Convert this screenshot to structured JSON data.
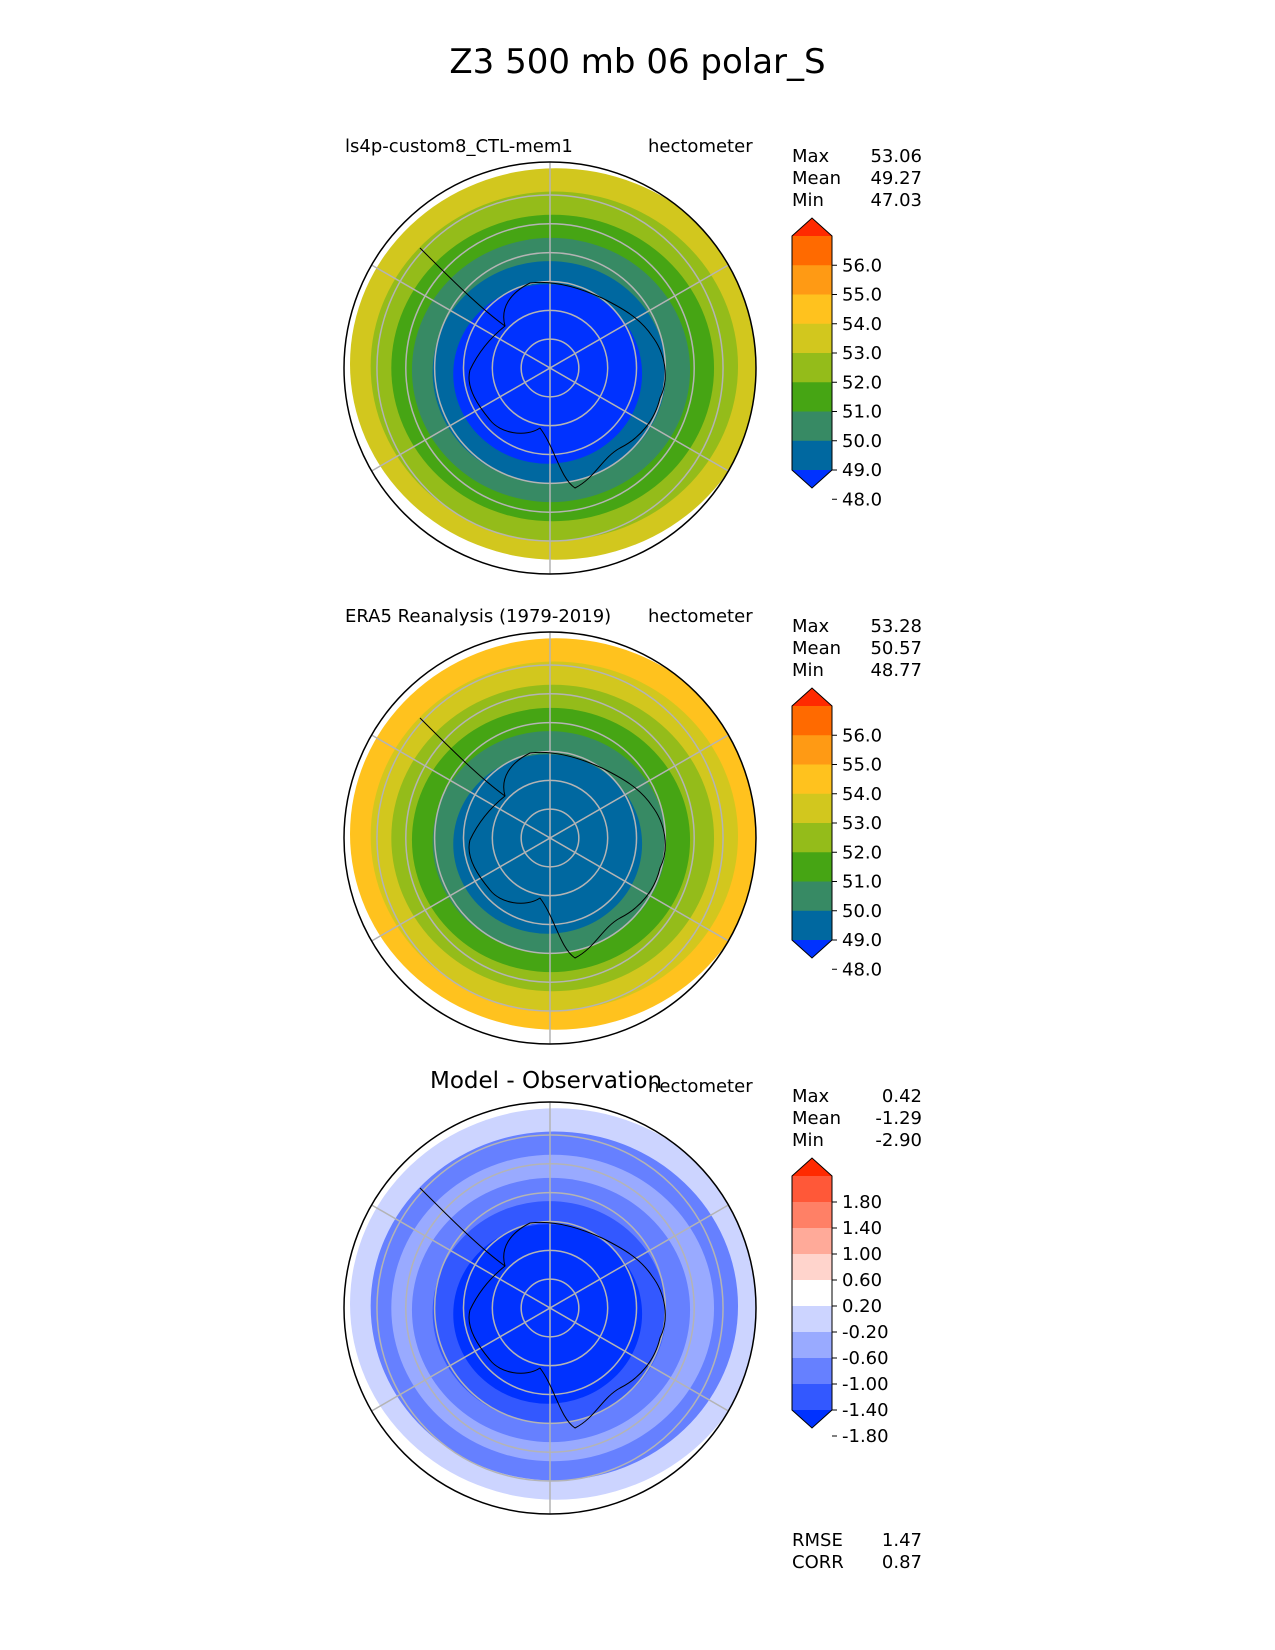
{
  "title": "Z3 500 mb 06 polar_S",
  "panels": [
    {
      "left_label": "ls4p-custom8_CTL-mem1",
      "center_label": "",
      "units": "hectometer",
      "stats": [
        {
          "label": "Max",
          "value": "53.06"
        },
        {
          "label": "Mean",
          "value": "49.27"
        },
        {
          "label": "Min",
          "value": "47.03"
        }
      ],
      "colorbar": {
        "ticks": [
          "56.0",
          "55.0",
          "54.0",
          "53.0",
          "52.0",
          "51.0",
          "50.0",
          "49.0",
          "48.0"
        ],
        "colors": [
          "#ff2a00",
          "#ff6a00",
          "#ff9a14",
          "#ffc21e",
          "#d2c71e",
          "#94bc1a",
          "#46a514",
          "#378a64",
          "#0068a0",
          "#0032ff"
        ]
      },
      "rings": [
        "#0032ff",
        "#0068a0",
        "#378a64",
        "#46a514",
        "#94bc1a",
        "#d2c71e"
      ]
    },
    {
      "left_label": "ERA5 Reanalysis (1979-2019)",
      "center_label": "",
      "units": "hectometer",
      "stats": [
        {
          "label": "Max",
          "value": "53.28"
        },
        {
          "label": "Mean",
          "value": "50.57"
        },
        {
          "label": "Min",
          "value": "48.77"
        }
      ],
      "colorbar": {
        "ticks": [
          "56.0",
          "55.0",
          "54.0",
          "53.0",
          "52.0",
          "51.0",
          "50.0",
          "49.0",
          "48.0"
        ],
        "colors": [
          "#ff2a00",
          "#ff6a00",
          "#ff9a14",
          "#ffc21e",
          "#d2c71e",
          "#94bc1a",
          "#46a514",
          "#378a64",
          "#0068a0",
          "#0032ff"
        ]
      },
      "rings": [
        "#0068a0",
        "#378a64",
        "#46a514",
        "#94bc1a",
        "#d2c71e",
        "#ffc21e"
      ]
    },
    {
      "left_label": "",
      "center_label": "Model - Observation",
      "units": "hectometer",
      "stats": [
        {
          "label": "Max",
          "value": "0.42"
        },
        {
          "label": "Mean",
          "value": "-1.29"
        },
        {
          "label": "Min",
          "value": "-2.90"
        }
      ],
      "colorbar": {
        "ticks": [
          "1.80",
          "1.40",
          "1.00",
          "0.60",
          "0.20",
          "-0.20",
          "-0.60",
          "-1.00",
          "-1.40",
          "-1.80"
        ],
        "colors": [
          "#ff2a00",
          "#ff5838",
          "#ff8066",
          "#ffaa99",
          "#ffd4cc",
          "#ffffff",
          "#ccd4ff",
          "#99aaff",
          "#6680ff",
          "#3358ff",
          "#0032ff"
        ]
      },
      "rings": [
        "#0032ff",
        "#3358ff",
        "#6680ff",
        "#99aaff",
        "#6680ff",
        "#ccd4ff"
      ],
      "extra_stats": [
        {
          "label": "RMSE",
          "value": "1.47"
        },
        {
          "label": "CORR",
          "value": "0.87"
        }
      ]
    }
  ],
  "chart_data": [
    {
      "type": "heatmap",
      "title": "ls4p-custom8_CTL-mem1",
      "units": "hectometer",
      "max": 53.06,
      "mean": 49.27,
      "min": 47.03,
      "levels": [
        48,
        49,
        50,
        51,
        52,
        53,
        54,
        55,
        56
      ]
    },
    {
      "type": "heatmap",
      "title": "ERA5 Reanalysis (1979-2019)",
      "units": "hectometer",
      "max": 53.28,
      "mean": 50.57,
      "min": 48.77,
      "levels": [
        48,
        49,
        50,
        51,
        52,
        53,
        54,
        55,
        56
      ]
    },
    {
      "type": "heatmap",
      "title": "Model - Observation",
      "units": "hectometer",
      "max": 0.42,
      "mean": -1.29,
      "min": -2.9,
      "rmse": 1.47,
      "corr": 0.87,
      "levels": [
        -1.8,
        -1.4,
        -1.0,
        -0.6,
        -0.2,
        0.2,
        0.6,
        1.0,
        1.4,
        1.8
      ]
    }
  ]
}
